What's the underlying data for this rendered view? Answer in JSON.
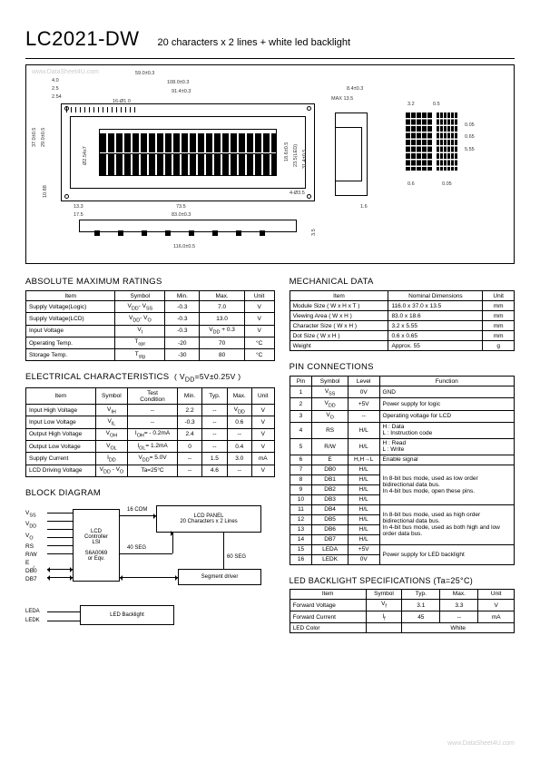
{
  "header": {
    "part_number": "LC2021-DW",
    "description": "20 characters x 2 lines + white led backlight"
  },
  "watermarks": {
    "top_left": "www.DataSheet4U.com",
    "bottom_right": "www.DataSheet4U.com"
  },
  "drawing_dims": {
    "top1": "59.0±0.3",
    "top2": "108.0±0.3",
    "top3": "91.4±0.3",
    "a": "4.0",
    "b": "2.5",
    "c": "2.54",
    "d": "16-Ø1.0",
    "left1": "37.0±0.5",
    "left2": "29.0±0.5",
    "left3": "10.88",
    "bot1": "13.3",
    "bot2": "17.5",
    "bot3": "73.5",
    "bot4": "83.0±0.3",
    "bot5": "116.0±0.5",
    "max": "MAX  13.5",
    "r1": "8.4±0.3",
    "r2": "4-Ø3.5",
    "r3": "1.6",
    "hgt1": "Ø2.54x7",
    "hgt2": "18.6±0.5",
    "hgt3": "23.5(LED)",
    "hgt4": "31.4±0.5",
    "side1": "3.5",
    "side2": "3.2",
    "side3": "0.5",
    "side4": "0.05",
    "side5": "0.6",
    "side6": "5.55",
    "side7": "0.65"
  },
  "abs_max": {
    "title": "ABSOLUTE MAXIMUM RATINGS",
    "cols": [
      "Item",
      "Symbol",
      "Min.",
      "Max.",
      "Unit"
    ],
    "rows": [
      [
        "Supply Voltage(Logic)",
        "V<sub>DD</sub>- V<sub>SS</sub>",
        "-0.3",
        "7.0",
        "V"
      ],
      [
        "Supply Voltage(LCD)",
        "V<sub>DD</sub>- V<sub>O</sub>",
        "-0.3",
        "13.0",
        "V"
      ],
      [
        "Input  Voltage",
        "V<sub>I</sub>",
        "-0.3",
        "V<sub>DD</sub> + 0.3",
        "V"
      ],
      [
        "Operating Temp.",
        "T<sub>opr</sub>",
        "-20",
        "70",
        "°C"
      ],
      [
        "Storage Temp.",
        "T<sub>stg</sub>",
        "-30",
        "80",
        "°C"
      ]
    ]
  },
  "mech_data": {
    "title": "MECHANICAL DATA",
    "cols": [
      "Item",
      "Nominal Dimensions",
      "Unit"
    ],
    "rows": [
      [
        "Module Size ( W x H x T )",
        "116.0 x 37.0 x 13.5",
        "mm"
      ],
      [
        "Viewing Area ( W x H )",
        "83.0 x 18.6",
        "mm"
      ],
      [
        "Character Size ( W x H )",
        "3.2 x 5.55",
        "mm"
      ],
      [
        "Dot Size ( W x H )",
        "0.6 x 0.65",
        "mm"
      ],
      [
        "Weight",
        "Approx.  55",
        "g"
      ]
    ]
  },
  "elec_char": {
    "title": "ELECTRICAL CHARACTERISTICS",
    "cond": "( V<sub>DD</sub>=5V±0.25V )",
    "cols": [
      "Item",
      "Symbol",
      "Test<br>Condition",
      "Min.",
      "Typ.",
      "Max.",
      "Unit"
    ],
    "rows": [
      [
        "Input  High Voltage",
        "V<sub>IH</sub>",
        "--",
        "2.2",
        "--",
        "V<sub>DD</sub>",
        "V"
      ],
      [
        "Input  Low  Voltage",
        "V<sub>IL</sub>",
        "--",
        "-0.3",
        "--",
        "0.6",
        "V"
      ],
      [
        "Output High Voltage",
        "V<sub>OH</sub>",
        "I<sub>OH</sub>= - 0.2mA",
        "2.4",
        "--",
        "--",
        "V"
      ],
      [
        "Output Low Voltage",
        "V<sub>OL</sub>",
        "I<sub>OL</sub>=  1.2mA",
        "0",
        "--",
        "0.4",
        "V"
      ],
      [
        "Supply Current",
        "I<sub>DD</sub>",
        "V<sub>DD</sub>=  5.0V",
        "--",
        "1.5",
        "3.0",
        "mA"
      ],
      [
        "LCD Driving Voltage",
        "V<sub>DD</sub> - V<sub>O</sub>",
        "Ta=25°C",
        "--",
        "4.6",
        "--",
        "V"
      ]
    ]
  },
  "pin_conn": {
    "title": "PIN CONNECTIONS",
    "cols": [
      "Pin",
      "Symbol",
      "Level",
      "Function"
    ],
    "rows": [
      [
        "1",
        "V<sub>SS</sub>",
        "0V",
        "GND",
        1
      ],
      [
        "2",
        "V<sub>DD</sub>",
        "+5V",
        "Power supply for logic",
        1
      ],
      [
        "3",
        "V<sub>O</sub>",
        "--",
        "Operating voltage for LCD",
        1
      ],
      [
        "4",
        "RS",
        "H/L",
        "H : Data<br>L : Instruction code",
        1
      ],
      [
        "5",
        "R/W",
        "H/L",
        "H : Read<br>L : Write",
        1
      ],
      [
        "6",
        "E",
        "H,H→L",
        "Enable signal",
        1
      ],
      [
        "7",
        "DB0",
        "H/L",
        "In 8-bit bus mode, used as low order bidirectional data bus.<br>In 4-bit bus mode, open these pins.",
        4
      ],
      [
        "8",
        "DB1",
        "H/L",
        "",
        0
      ],
      [
        "9",
        "DB2",
        "H/L",
        "",
        0
      ],
      [
        "10",
        "DB3",
        "H/L",
        "",
        0
      ],
      [
        "11",
        "DB4",
        "H/L",
        "In 8-bit bus mode, used as high order bidirectional data bus.<br>In 4-bit bus mode, used as both high and low order data bus.",
        4
      ],
      [
        "12",
        "DB5",
        "H/L",
        "",
        0
      ],
      [
        "13",
        "DB6",
        "H/L",
        "",
        0
      ],
      [
        "14",
        "DB7",
        "H/L",
        "",
        0
      ],
      [
        "15",
        "LEDA",
        "+5V",
        "Power supply for LED backlight",
        2
      ],
      [
        "16",
        "LEDK",
        "0V",
        "",
        0
      ]
    ]
  },
  "block_diagram": {
    "title": "BLOCK DIAGRAM",
    "signals": [
      "V<sub>SS</sub>",
      "V<sub>DD</sub>",
      "V<sub>O</sub>",
      "RS",
      "R/W",
      "E",
      "",
      "DB0",
      "DB7"
    ],
    "ctrl": "LCD<br>Controller<br>LSI<br><br>S6A0069<br>or Eqv.",
    "panel": "LCD  PANEL<br>20 Characters x 2 Lines",
    "segdrv": "Segment driver",
    "ledbl": "LED Backlight",
    "com": "16 COM",
    "seg1": "40 SEG",
    "seg2": "60 SEG",
    "leda": "LEDA",
    "ledk": "LEDK",
    "slash": "/"
  },
  "led_spec": {
    "title": "LED BACKLIGHT SPECIFICATIONS (Ta=25°C)",
    "cols": [
      "Item",
      "Symbol",
      "Typ.",
      "Max.",
      "Unit"
    ],
    "rows": [
      [
        "Forward Voltage",
        "V<sub>f</sub>",
        "3.1",
        "3.3",
        "V"
      ],
      [
        "Forward Current",
        "I<sub>f</sub>",
        "45",
        "--",
        "mA"
      ],
      [
        "LED Color",
        "",
        "White",
        "",
        ""
      ]
    ],
    "colspans": [
      0,
      0,
      3,
      0,
      0
    ]
  }
}
